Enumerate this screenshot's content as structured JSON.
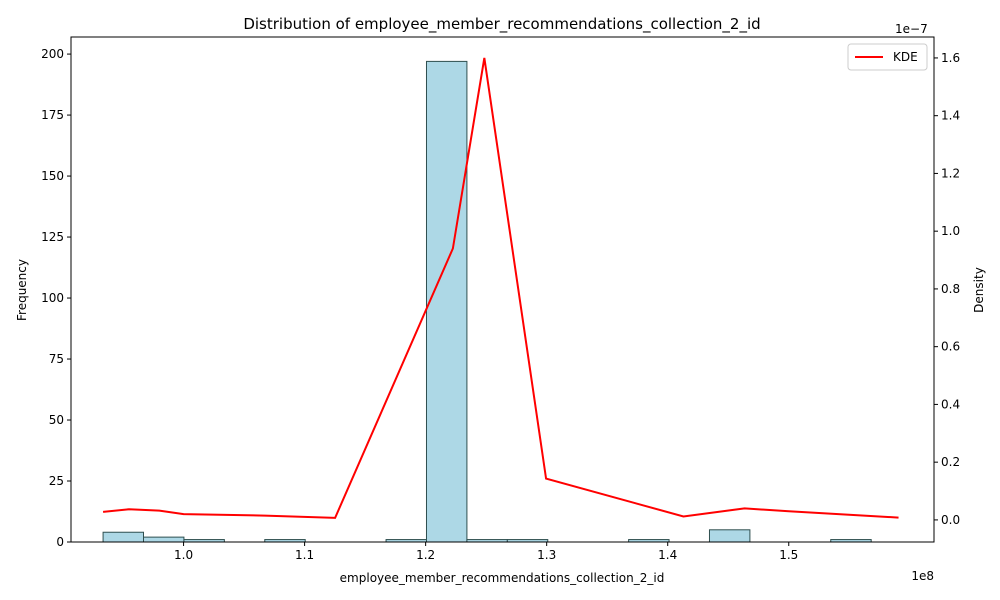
{
  "chart_data": {
    "type": "bar",
    "title": "Distribution of employee_member_recommendations_collection_2_id",
    "xlabel": "employee_member_recommendations_collection_2_id",
    "ylabel": "Frequency",
    "y2label": "Density",
    "x_offset_text": "1e8",
    "y2_offset_text": "1e−7",
    "xlim": [
      0.907,
      1.62
    ],
    "ylim": [
      0,
      207
    ],
    "y2lim": [
      -0.0765,
      1.6725
    ],
    "x_ticks": [
      1.0,
      1.1,
      1.2,
      1.3,
      1.4,
      1.5
    ],
    "x_tick_labels": [
      "1.0",
      "1.1",
      "1.2",
      "1.3",
      "1.4",
      "1.5"
    ],
    "y_ticks": [
      0,
      25,
      50,
      75,
      100,
      125,
      150,
      175,
      200
    ],
    "y_tick_labels": [
      "0",
      "25",
      "50",
      "75",
      "100",
      "125",
      "150",
      "175",
      "200"
    ],
    "y2_ticks": [
      0.0,
      0.2,
      0.4,
      0.6,
      0.8,
      1.0,
      1.2,
      1.4,
      1.6
    ],
    "y2_tick_labels": [
      "0.0",
      "0.2",
      "0.4",
      "0.6",
      "0.8",
      "1.0",
      "1.2",
      "1.4",
      "1.6"
    ],
    "bin_edges": [
      0.9335,
      0.9669,
      1.0003,
      1.0337,
      1.0671,
      1.1005,
      1.1339,
      1.1673,
      1.2007,
      1.2341,
      1.2675,
      1.3009,
      1.3343,
      1.3677,
      1.4011,
      1.4345,
      1.4679,
      1.5013,
      1.5347,
      1.5681,
      1.6015
    ],
    "counts": [
      4,
      2,
      1,
      0,
      1,
      0,
      0,
      1,
      197,
      1,
      1,
      0,
      0,
      1,
      0,
      5,
      0,
      0,
      1,
      0
    ],
    "grid": false,
    "legend_position": "top-right",
    "series": [
      {
        "name": "KDE",
        "color": "#ff0000",
        "x": [
          0.9335,
          0.955,
          0.98,
          1.0,
          1.0671,
          1.1252,
          1.2225,
          1.2485,
          1.2995,
          1.413,
          1.4635,
          1.5,
          1.5907
        ],
        "y": [
          0.028,
          0.037,
          0.032,
          0.02,
          0.015,
          0.007,
          0.94,
          1.6,
          0.143,
          0.012,
          0.04,
          0.03,
          0.008
        ]
      }
    ],
    "bar_color": "#add8e6",
    "bar_edge_color": "#2f4f4f"
  }
}
